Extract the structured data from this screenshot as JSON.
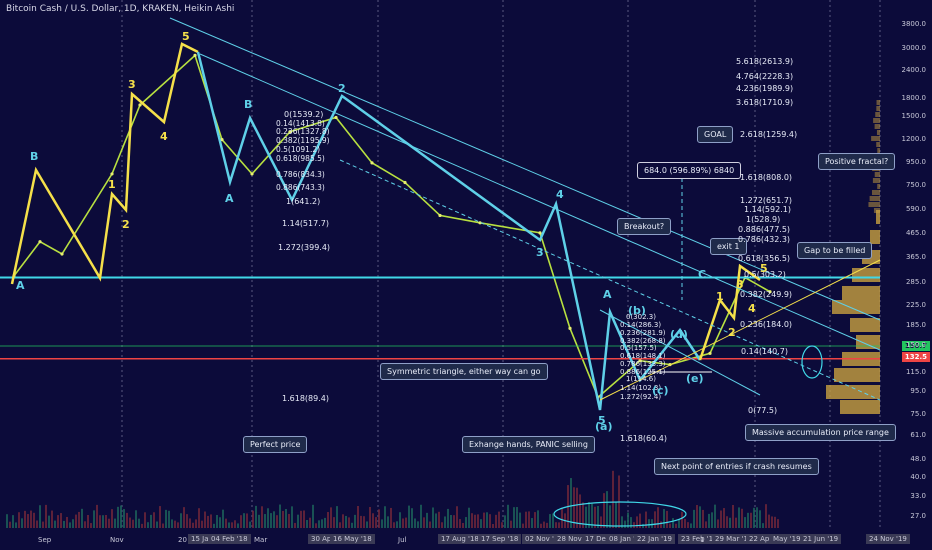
{
  "title": "Bitcoin Cash / U.S. Dollar, 1D, KRAKEN, Heikin Ashi",
  "price_axis": [
    "3800.0",
    "3000.0",
    "2400.0",
    "1800.0",
    "1500.0",
    "1200.0",
    "950.0",
    "750.0",
    "590.0",
    "465.0",
    "365.0",
    "285.0",
    "225.0",
    "185.0",
    "150.0",
    "115.0",
    "95.0",
    "75.0",
    "61.0",
    "48.0",
    "40.0",
    "33.0",
    "27.0"
  ],
  "date_axis": [
    "Sep",
    "Nov",
    "20",
    "15 Jan",
    "04 Feb '18",
    "Mar",
    "30 Apr '18",
    "16 May '18",
    "Jul",
    "17 Aug '18",
    "17 Sep '18",
    "02 Nov '2",
    "28 Nov '1",
    "17 Dec '1",
    "08 Jan '1",
    "22 Jan '19",
    "23 Feb '1",
    "1",
    "29 Mar '1",
    "22 Apr '19",
    "May '19",
    "21 Jun '19",
    "24 Nov '19"
  ],
  "current_price_tags": [
    {
      "value": "150.7",
      "color": "#22c55e"
    },
    {
      "value": "132.5",
      "color": "#ef4444"
    }
  ],
  "callouts": {
    "goal": "GOAL",
    "positive_fractal": "Positive fractal?",
    "breakout": "Breakout?",
    "exit1": "exit 1",
    "gap": "Gap to be filled",
    "symmetric": "Symmetric triangle, either way can go",
    "perfect_price": "Perfect price",
    "panic": "Exhange hands, PANIC selling",
    "next_entry": "Next point of entries if crash resumes",
    "accumulation": "Massive accumulation price range",
    "target_box": "684.0 (596.89%) 6840"
  },
  "fib_left": [
    "0(1539.2)",
    "0.14(1413.8)",
    "0.236(1327.8)",
    "0.382(1195.9)",
    "0.5(1091.2)",
    "0.618(985.5)",
    "0.786(834.3)",
    "0.886(743.3)",
    "1(641.2)",
    "1.14(517.7)",
    "1.272(399.4)",
    "1.618(89.4)"
  ],
  "fib_right_top": [
    "5.618(2613.9)",
    "4.764(2228.3)",
    "4.236(1989.9)",
    "3.618(1710.9)",
    "2.618(1259.4)",
    "1.618(808.0)",
    "1.272(651.7)",
    "1.14(592.1)",
    "1(528.9)",
    "0.886(477.5)",
    "0.786(432.3)",
    "0.618(356.5)",
    "0.5(303.2)",
    "0.382(249.9)",
    "0.236(184.0)",
    "0.14(140.7)",
    "0(77.5)"
  ],
  "fib_mid": [
    "0(302.3)",
    "0.14(286.3)",
    "0.236(281.9)",
    "0.382(268.8)",
    "0.5(157.5)",
    "0.618(148.1)",
    "0.786(133.3)",
    "0.886(125.1)",
    "1(114.6)",
    "1.14(102.3)",
    "1.272(92.4)",
    "1.618(60.4)"
  ],
  "wave_labels": {
    "wA1": "A",
    "wB1": "B",
    "w1": "1",
    "w2": "2",
    "w3": "3",
    "w4": "4",
    "w5": "5",
    "wA2": "A",
    "wB2": "B",
    "w2b": "2",
    "w3b": "3",
    "w4b": "4",
    "w5b": "5",
    "wA3": "A",
    "wC3": "C",
    "wa": "(a)",
    "wb": "(b)",
    "wc": "(c)",
    "wd": "(d)",
    "we": "(e)",
    "w1c": "1",
    "w2c": "2",
    "w3c": "3",
    "w4c": "4",
    "w5c": "5"
  },
  "chart_data": {
    "type": "line",
    "title": "Bitcoin Cash / U.S. Dollar, 1D, KRAKEN, Heikin Ashi",
    "xlabel": "",
    "ylabel": "",
    "log_scale": true,
    "ylim": [
      25,
      4200
    ],
    "x": [
      "2017-08",
      "2017-09",
      "2017-10",
      "2017-11",
      "2017-12",
      "2018-01",
      "2018-02",
      "2018-03",
      "2018-04",
      "2018-05",
      "2018-06",
      "2018-07",
      "2018-08",
      "2018-09",
      "2018-10",
      "2018-11",
      "2018-12",
      "2019-01",
      "2019-02",
      "2019-03",
      "2019-04",
      "2019-05"
    ],
    "series": [
      {
        "values": [
          305,
          430,
          380,
          850,
          1700,
          2800,
          1200,
          850,
          1300,
          1500,
          950,
          780,
          560,
          520,
          470,
          180,
          90,
          130,
          125,
          140,
          300,
          260
        ]
      }
    ],
    "levels": [
      300,
      140.7,
      132.5
    ],
    "colors": {
      "price_line": "#b8e040",
      "wave": "#5fd0e8",
      "wave_alt": "#f5e04a",
      "support": "#40d8e8",
      "red_level": "#ef4444"
    }
  }
}
